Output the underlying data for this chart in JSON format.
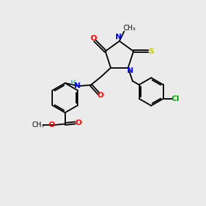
{
  "bg_color": "#ebebeb",
  "bond_lw": 1.4,
  "figsize": [
    3.0,
    3.0
  ],
  "dpi": 100,
  "xlim": [
    0,
    10
  ],
  "ylim": [
    0,
    10
  ]
}
